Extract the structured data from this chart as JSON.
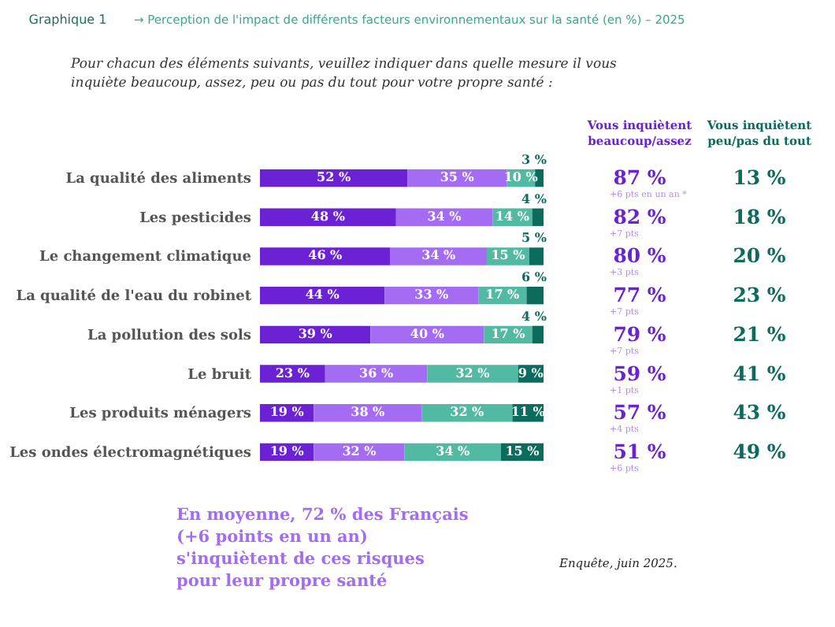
{
  "chart_data": {
    "type": "bar",
    "orientation": "horizontal",
    "stacked": true,
    "title": "→ Perception de l'impact de différents facteurs environnementaux sur la santé (en %) – 2025",
    "subtitle": "Pour chacun des éléments suivants, veuillez indiquer dans quelle mesure il vous\ninquiète beaucoup, assez, peu ou pas du tout pour votre propre santé :",
    "categories": [
      "La qualité des aliments",
      "Les pesticides",
      "Le changement climatique",
      "La qualité de l'eau du robinet",
      "La pollution des sols",
      "Le bruit",
      "Les produits ménagers",
      "Les ondes électromagnétiques"
    ],
    "series": [
      {
        "color": "#6a22d4",
        "values": [
          52,
          48,
          46,
          44,
          39,
          23,
          19,
          19
        ],
        "value_labels": [
          "52 %",
          "48 %",
          "46 %",
          "44 %",
          "39 %",
          "23 %",
          "19 %",
          "19 %"
        ]
      },
      {
        "color": "#a46cf2",
        "values": [
          35,
          34,
          34,
          33,
          40,
          36,
          38,
          32
        ],
        "value_labels": [
          "35 %",
          "34 %",
          "34 %",
          "33 %",
          "40 %",
          "36 %",
          "38 %",
          "32 %"
        ]
      },
      {
        "color": "#52b9a2",
        "values": [
          10,
          14,
          15,
          17,
          17,
          32,
          32,
          34
        ],
        "value_labels": [
          "10 %",
          "14 %",
          "15 %",
          "17 %",
          "17 %",
          "32 %",
          "32 %",
          "34 %"
        ]
      },
      {
        "color": "#0b6b5d",
        "values": [
          3,
          4,
          5,
          6,
          4,
          9,
          11,
          15
        ],
        "value_labels": [
          "3 %",
          "4 %",
          "5 %",
          "6 %",
          "4 %",
          "9 %",
          "11 %",
          "15 %"
        ]
      }
    ],
    "xlim": [
      0,
      100
    ],
    "tick_labels": "y",
    "grid": false,
    "legend": false,
    "annotations": [
      "Graphique 1",
      "Vous inquiètent\nbeaucoup/assez",
      "Vous inquiètent\npeu/pas du tout",
      "En moyenne, 72 % des Français\n(+6 points en un an)\ns'inquiètent de ces risques\npour leur propre santé",
      "Enquête, juin 2025.",
      "87 %",
      "+6 pts en un an *",
      "13 %",
      "82 %",
      "+7 pts",
      "18 %",
      "80 %",
      "+3 pts",
      "20 %",
      "77 %",
      "+7 pts",
      "23 %",
      "79 %",
      "+7 pts",
      "21 %",
      "59 %",
      "+1 pts",
      "41 %",
      "57 %",
      "+4 pts",
      "43 %",
      "51 %",
      "+6 pts",
      "49 %"
    ]
  }
}
